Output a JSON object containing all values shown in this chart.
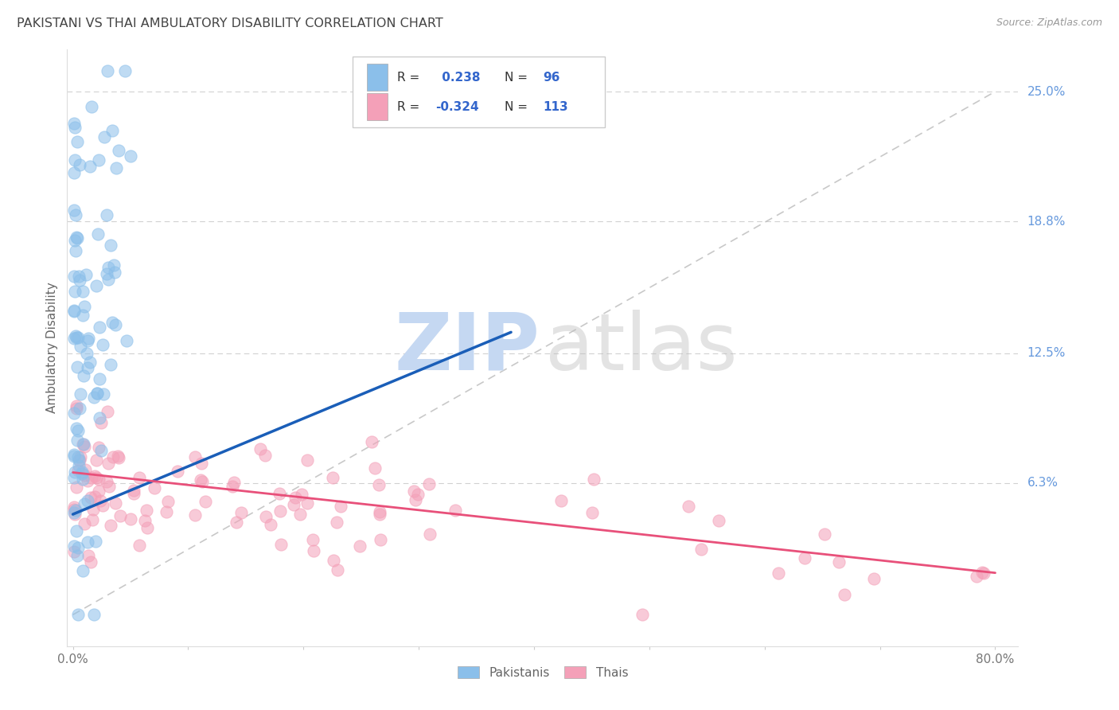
{
  "title": "PAKISTANI VS THAI AMBULATORY DISABILITY CORRELATION CHART",
  "source": "Source: ZipAtlas.com",
  "ylabel": "Ambulatory Disability",
  "ytick_labels": [
    "25.0%",
    "18.8%",
    "12.5%",
    "6.3%"
  ],
  "ytick_values": [
    0.25,
    0.188,
    0.125,
    0.063
  ],
  "xlim": [
    -0.005,
    0.82
  ],
  "ylim": [
    -0.015,
    0.27
  ],
  "pakistani_R": 0.238,
  "pakistani_N": 96,
  "thai_R": -0.324,
  "thai_N": 113,
  "pakistani_color": "#8BBFEA",
  "thai_color": "#F4A0B8",
  "pakistani_line_color": "#1A5EB8",
  "thai_line_color": "#E8507A",
  "diag_line_color": "#BBBBBB",
  "background_color": "#FFFFFF",
  "grid_color": "#CCCCCC",
  "title_color": "#444444",
  "right_label_color": "#6699DD",
  "legend_border_color": "#CCCCCC",
  "pk_line_x0": 0.0,
  "pk_line_y0": 0.048,
  "pk_line_x1": 0.38,
  "pk_line_y1": 0.135,
  "th_line_x0": 0.0,
  "th_line_y0": 0.068,
  "th_line_x1": 0.8,
  "th_line_y1": 0.02
}
